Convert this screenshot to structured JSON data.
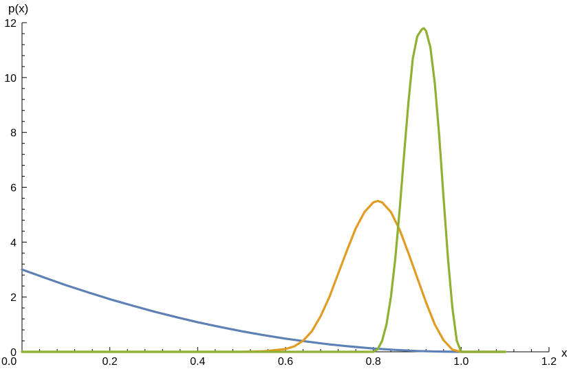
{
  "chart_data": {
    "type": "line",
    "title": "",
    "xlabel": "x",
    "ylabel": "p(x)",
    "xlim": [
      0.0,
      1.2
    ],
    "ylim": [
      0,
      12
    ],
    "xticks": [
      0.0,
      0.2,
      0.4,
      0.6,
      0.8,
      1.0,
      1.2
    ],
    "xtick_labels": [
      "0.0",
      "0.2",
      "0.4",
      "0.6",
      "0.8",
      "1.0",
      "1.2"
    ],
    "yticks": [
      0,
      2,
      4,
      6,
      8,
      10,
      12
    ],
    "ytick_labels": [
      "0",
      "2",
      "4",
      "6",
      "8",
      "10",
      "12"
    ],
    "grid": false,
    "legend": "none",
    "series": [
      {
        "color": "#5e81b5",
        "x": [
          0.0,
          0.05,
          0.1,
          0.15,
          0.2,
          0.25,
          0.3,
          0.35,
          0.4,
          0.45,
          0.5,
          0.55,
          0.6,
          0.65,
          0.7,
          0.75,
          0.8,
          0.85,
          0.9,
          0.95,
          1.0,
          1.05,
          1.1
        ],
        "y": [
          3.0,
          2.71,
          2.43,
          2.17,
          1.92,
          1.69,
          1.47,
          1.27,
          1.08,
          0.91,
          0.75,
          0.61,
          0.48,
          0.37,
          0.27,
          0.19,
          0.12,
          0.07,
          0.03,
          0.01,
          0.0,
          0.0,
          0.0
        ]
      },
      {
        "color": "#e19c24",
        "x": [
          0.0,
          0.5,
          0.55,
          0.6,
          0.62,
          0.64,
          0.66,
          0.68,
          0.7,
          0.72,
          0.74,
          0.76,
          0.78,
          0.8,
          0.81,
          0.82,
          0.84,
          0.86,
          0.88,
          0.9,
          0.92,
          0.94,
          0.96,
          0.98,
          1.0,
          1.05,
          1.1
        ],
        "y": [
          0.0,
          0.0,
          0.02,
          0.1,
          0.2,
          0.4,
          0.75,
          1.3,
          2.0,
          2.85,
          3.7,
          4.5,
          5.1,
          5.45,
          5.5,
          5.45,
          5.1,
          4.45,
          3.6,
          2.7,
          1.8,
          1.0,
          0.42,
          0.08,
          0.0,
          0.0,
          0.0
        ]
      },
      {
        "color": "#8fb032",
        "x": [
          0.0,
          0.8,
          0.81,
          0.82,
          0.83,
          0.84,
          0.85,
          0.86,
          0.87,
          0.88,
          0.89,
          0.9,
          0.91,
          0.915,
          0.92,
          0.93,
          0.94,
          0.95,
          0.96,
          0.97,
          0.98,
          0.99,
          1.0,
          1.05,
          1.1
        ],
        "y": [
          0.0,
          0.0,
          0.1,
          0.4,
          1.0,
          2.0,
          3.4,
          5.2,
          7.2,
          9.1,
          10.7,
          11.5,
          11.75,
          11.8,
          11.7,
          11.1,
          9.8,
          7.9,
          5.6,
          3.4,
          1.6,
          0.4,
          0.0,
          0.0,
          0.0
        ]
      }
    ]
  }
}
